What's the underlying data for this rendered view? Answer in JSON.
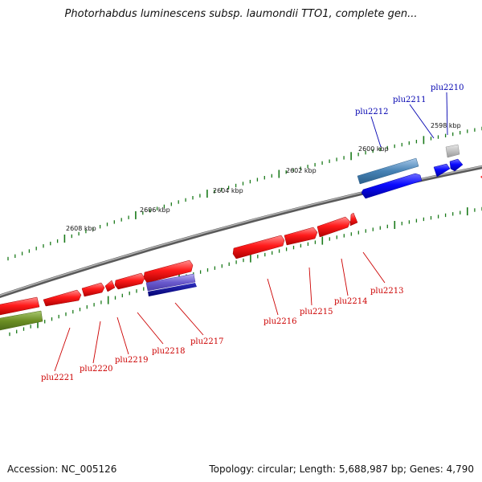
{
  "title": "Photorhabdus luminescens subsp. laumondii TTO1, complete gen...",
  "footer": {
    "accession": "Accession: NC_005126",
    "summary": "Topology: circular; Length: 5,688,987 bp; Genes: 4,790"
  },
  "colors": {
    "backbone": "#7a7a7a",
    "forward_strand_gene": "#ff1a1a",
    "reverse_strand_gene": "#0000ff",
    "tick": "#1a7a1a",
    "label_red": "#cc0000",
    "label_blue": "#0000b0",
    "light_blue_feature": "#4682b4",
    "purple_feature": "#6a5acd",
    "olive_feature": "#6b8e23",
    "grey_feature": "#b0b0b0"
  },
  "scale_labels": [
    "2598 kbp",
    "2600 kbp",
    "2602 kbp",
    "2604 kbp",
    "2606 kbp",
    "2608 kbp"
  ],
  "gene_labels": [
    {
      "text": "plu2210",
      "color": "blue"
    },
    {
      "text": "plu2211",
      "color": "blue"
    },
    {
      "text": "plu2212",
      "color": "blue"
    },
    {
      "text": "plu2213",
      "color": "red"
    },
    {
      "text": "plu2214",
      "color": "red"
    },
    {
      "text": "plu2215",
      "color": "red"
    },
    {
      "text": "plu2216",
      "color": "red"
    },
    {
      "text": "plu2217",
      "color": "red"
    },
    {
      "text": "plu2218",
      "color": "red"
    },
    {
      "text": "plu2219",
      "color": "red"
    },
    {
      "text": "plu2220",
      "color": "red"
    },
    {
      "text": "plu2221",
      "color": "red"
    }
  ]
}
